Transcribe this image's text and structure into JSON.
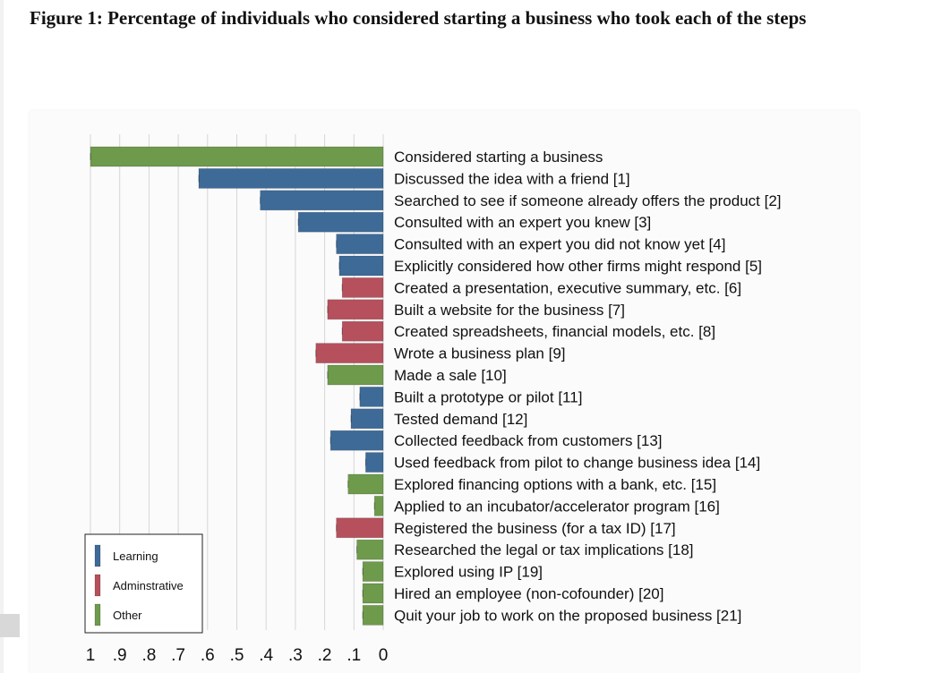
{
  "title": "Figure 1: Percentage of individuals who considered starting a business who took each of the steps",
  "colors": {
    "Learning": "#3e6a98",
    "Adminstrative": "#b5505c",
    "Other": "#6e9a4c",
    "grid": "#d6d6d6",
    "text": "#111111"
  },
  "chart_data": {
    "type": "bar",
    "orientation": "horizontal",
    "x_direction": "reversed",
    "xlim": [
      0,
      1
    ],
    "xticks": [
      1,
      0.9,
      0.8,
      0.7,
      0.6,
      0.5,
      0.4,
      0.3,
      0.2,
      0.1,
      0
    ],
    "xtick_labels": [
      "1",
      ".9",
      ".8",
      ".7",
      ".6",
      ".5",
      ".4",
      ".3",
      ".2",
      ".1",
      "0"
    ],
    "legend": {
      "position": "bottom-left",
      "entries": [
        "Learning",
        "Adminstrative",
        "Other"
      ]
    },
    "categories": [
      "Considered starting a business",
      "Discussed the idea with a friend [1]",
      "Searched to see if someone already offers the product [2]",
      "Consulted with an expert you knew [3]",
      "Consulted with an expert you did not know yet [4]",
      "Explicitly considered how other firms might respond [5]",
      "Created a presentation, executive summary, etc. [6]",
      "Built a website for the business [7]",
      "Created spreadsheets, financial models, etc. [8]",
      "Wrote a business plan [9]",
      "Made a sale [10]",
      "Built a prototype or pilot [11]",
      "Tested demand [12]",
      "Collected feedback from customers [13]",
      "Used feedback from pilot to change business idea [14]",
      "Explored financing options with a bank, etc. [15]",
      "Applied to an incubator/accelerator program [16]",
      "Registered the business (for a tax ID) [17]",
      "Researched the legal or tax implications [18]",
      "Explored using IP [19]",
      "Hired an employee (non-cofounder) [20]",
      "Quit your job to work on the proposed business [21]"
    ],
    "values": [
      1.0,
      0.63,
      0.42,
      0.29,
      0.16,
      0.15,
      0.14,
      0.19,
      0.14,
      0.23,
      0.19,
      0.08,
      0.11,
      0.18,
      0.06,
      0.12,
      0.03,
      0.16,
      0.09,
      0.07,
      0.07,
      0.07
    ],
    "groups": [
      "Other",
      "Learning",
      "Learning",
      "Learning",
      "Learning",
      "Learning",
      "Adminstrative",
      "Adminstrative",
      "Adminstrative",
      "Adminstrative",
      "Other",
      "Learning",
      "Learning",
      "Learning",
      "Learning",
      "Other",
      "Other",
      "Adminstrative",
      "Other",
      "Other",
      "Other",
      "Other"
    ]
  }
}
